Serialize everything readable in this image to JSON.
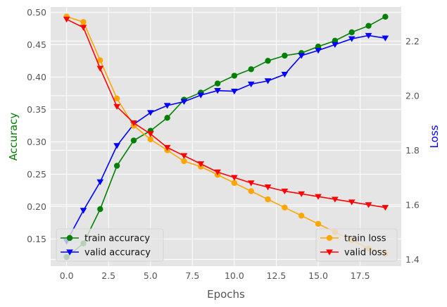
{
  "chart_data": {
    "type": "line",
    "title": "",
    "xlabel": "Epochs",
    "ylabel_left": "Accuracy",
    "ylabel_right": "Loss",
    "x": [
      0,
      1,
      2,
      3,
      4,
      5,
      6,
      7,
      8,
      9,
      10,
      11,
      12,
      13,
      14,
      15,
      16,
      17,
      18,
      19
    ],
    "xlim": [
      -0.95,
      19.95
    ],
    "xticks": [
      0,
      2.5,
      5,
      7.5,
      10,
      12.5,
      15,
      17.5
    ],
    "xtick_labels": [
      "0.0",
      "2.5",
      "5.0",
      "7.5",
      "10.0",
      "12.5",
      "15.0",
      "17.5"
    ],
    "ylim_left": [
      0.108,
      0.508
    ],
    "yticks_left": [
      0.15,
      0.2,
      0.25,
      0.3,
      0.35,
      0.4,
      0.45,
      0.5
    ],
    "ytick_labels_left": [
      "0.15",
      "0.20",
      "0.25",
      "0.30",
      "0.35",
      "0.40",
      "0.45",
      "0.50"
    ],
    "ylim_right": [
      1.375,
      2.325
    ],
    "yticks_right": [
      1.4,
      1.6,
      1.8,
      2.0,
      2.2
    ],
    "ytick_labels_right": [
      "1.4",
      "1.6",
      "1.8",
      "2.0",
      "2.2"
    ],
    "grid": true,
    "series": [
      {
        "name": "train accuracy",
        "axis": "left",
        "color": "#008000",
        "marker": "circle",
        "values": [
          0.122,
          0.143,
          0.196,
          0.263,
          0.302,
          0.317,
          0.337,
          0.365,
          0.376,
          0.39,
          0.402,
          0.412,
          0.425,
          0.433,
          0.437,
          0.447,
          0.456,
          0.469,
          0.479,
          0.493
        ]
      },
      {
        "name": "valid accuracy",
        "axis": "left",
        "color": "#0000ff",
        "marker": "triangle-down",
        "values": [
          0.146,
          0.194,
          0.238,
          0.294,
          0.327,
          0.345,
          0.356,
          0.362,
          0.372,
          0.379,
          0.378,
          0.389,
          0.394,
          0.404,
          0.433,
          0.441,
          0.45,
          0.459,
          0.464,
          0.46
        ]
      },
      {
        "name": "train loss",
        "axis": "right",
        "color": "#ffa500",
        "marker": "circle",
        "values": [
          2.29,
          2.27,
          2.13,
          1.99,
          1.89,
          1.84,
          1.8,
          1.76,
          1.74,
          1.71,
          1.68,
          1.65,
          1.62,
          1.59,
          1.56,
          1.53,
          1.5,
          1.47,
          1.44,
          1.42
        ]
      },
      {
        "name": "valid loss",
        "axis": "right",
        "color": "#ff0000",
        "marker": "triangle-down",
        "values": [
          2.28,
          2.25,
          2.1,
          1.96,
          1.9,
          1.86,
          1.81,
          1.78,
          1.75,
          1.72,
          1.7,
          1.68,
          1.665,
          1.65,
          1.64,
          1.63,
          1.62,
          1.61,
          1.6,
          1.59
        ]
      }
    ],
    "legends": [
      {
        "placement": "lower-left",
        "entries": [
          "train accuracy",
          "valid accuracy"
        ]
      },
      {
        "placement": "lower-right",
        "entries": [
          "train loss",
          "valid loss"
        ]
      }
    ]
  }
}
